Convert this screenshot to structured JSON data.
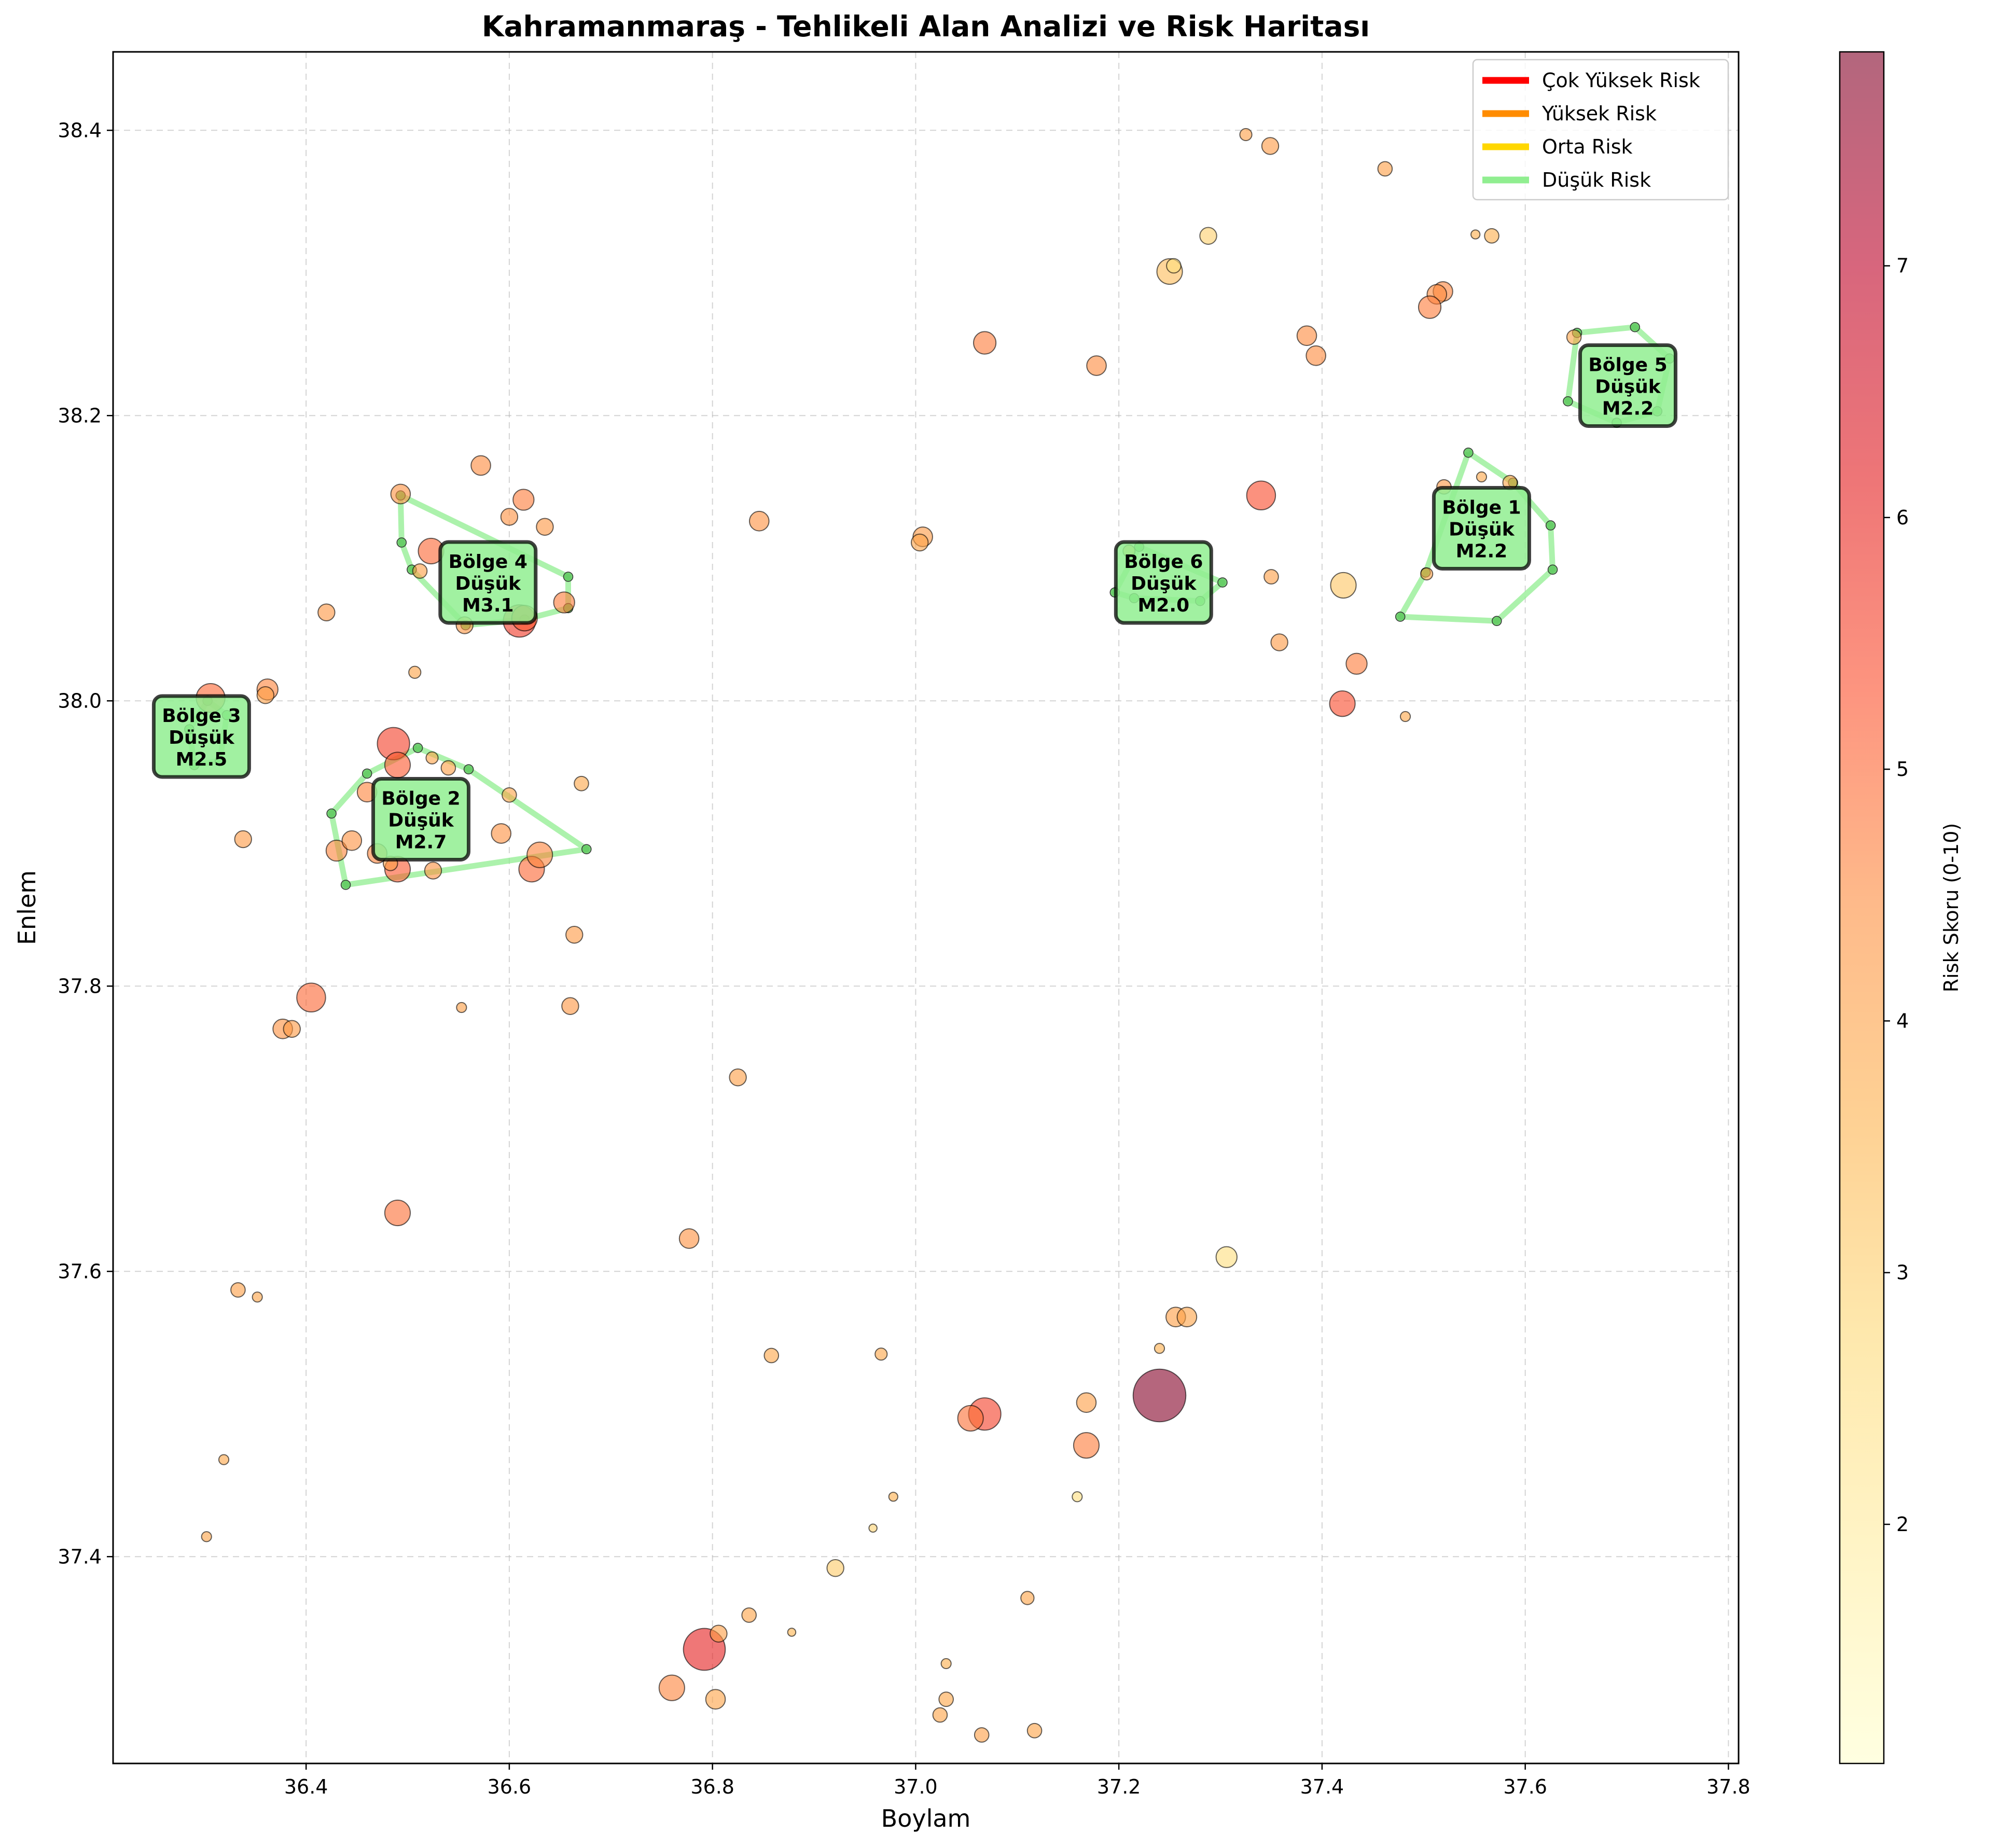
{
  "chart_data": {
    "type": "scatter",
    "title": "Kahramanmaraş - Tehlikeli Alan Analizi ve Risk Haritası",
    "xlabel": "Boylam",
    "ylabel": "Enlem",
    "xlim": [
      36.21,
      37.81
    ],
    "ylim": [
      37.255,
      38.455
    ],
    "xticks": [
      "36.4",
      "36.6",
      "36.8",
      "37.0",
      "37.2",
      "37.4",
      "37.6",
      "37.8"
    ],
    "yticks": [
      "37.4",
      "37.6",
      "37.8",
      "38.0",
      "38.2",
      "38.4"
    ],
    "grid": true,
    "legend": {
      "position": "top-right",
      "entries": [
        {
          "label": "Çok Yüksek Risk",
          "color": "#ff0000"
        },
        {
          "label": "Yüksek Risk",
          "color": "#ff8c00"
        },
        {
          "label": "Orta Risk",
          "color": "#ffd700"
        },
        {
          "label": "Düşük Risk",
          "color": "#90ee90"
        }
      ]
    },
    "colorbar": {
      "label": "Risk Skoru (0-10)",
      "min": 1.05,
      "max": 7.85,
      "ticks": [
        "2",
        "3",
        "4",
        "5",
        "6",
        "7"
      ],
      "colormap": [
        "#ffffcc",
        "#ffeda0",
        "#fed976",
        "#feb24c",
        "#fd8d3c",
        "#fc4e2a",
        "#e31a1c",
        "#bd0026",
        "#800026"
      ],
      "alpha": 0.6
    },
    "points": [
      {
        "x": 37.24,
        "y": 37.513,
        "m": 4.6,
        "risk": 7.8
      },
      {
        "x": 36.792,
        "y": 37.335,
        "m": 4.1,
        "risk": 6.1
      },
      {
        "x": 37.068,
        "y": 37.5,
        "m": 3.6,
        "risk": 5.6
      },
      {
        "x": 37.054,
        "y": 37.497,
        "m": 3.2,
        "risk": 4.9
      },
      {
        "x": 36.76,
        "y": 37.308,
        "m": 3.2,
        "risk": 4.6
      },
      {
        "x": 36.803,
        "y": 37.3,
        "m": 2.8,
        "risk": 4.0
      },
      {
        "x": 36.806,
        "y": 37.346,
        "m": 2.6,
        "risk": 4.1
      },
      {
        "x": 36.836,
        "y": 37.359,
        "m": 2.4,
        "risk": 4.0
      },
      {
        "x": 36.878,
        "y": 37.347,
        "m": 1.8,
        "risk": 3.6
      },
      {
        "x": 36.921,
        "y": 37.392,
        "m": 2.6,
        "risk": 3.1
      },
      {
        "x": 36.958,
        "y": 37.42,
        "m": 1.8,
        "risk": 2.9
      },
      {
        "x": 36.978,
        "y": 37.442,
        "m": 1.9,
        "risk": 3.7
      },
      {
        "x": 37.03,
        "y": 37.325,
        "m": 2.0,
        "risk": 3.7
      },
      {
        "x": 37.03,
        "y": 37.3,
        "m": 2.4,
        "risk": 3.9
      },
      {
        "x": 37.024,
        "y": 37.289,
        "m": 2.4,
        "risk": 4.0
      },
      {
        "x": 37.065,
        "y": 37.275,
        "m": 2.4,
        "risk": 4.1
      },
      {
        "x": 37.117,
        "y": 37.278,
        "m": 2.4,
        "risk": 4.0
      },
      {
        "x": 37.11,
        "y": 37.371,
        "m": 2.3,
        "risk": 4.0
      },
      {
        "x": 37.159,
        "y": 37.442,
        "m": 2.0,
        "risk": 2.6
      },
      {
        "x": 37.168,
        "y": 37.508,
        "m": 2.8,
        "risk": 4.1
      },
      {
        "x": 37.168,
        "y": 37.478,
        "m": 3.2,
        "risk": 4.7
      },
      {
        "x": 37.24,
        "y": 37.546,
        "m": 2.0,
        "risk": 3.7
      },
      {
        "x": 37.256,
        "y": 37.568,
        "m": 2.8,
        "risk": 4.1
      },
      {
        "x": 37.267,
        "y": 37.568,
        "m": 2.8,
        "risk": 4.0
      },
      {
        "x": 37.306,
        "y": 37.61,
        "m": 2.9,
        "risk": 2.6
      },
      {
        "x": 36.966,
        "y": 37.542,
        "m": 2.2,
        "risk": 3.9
      },
      {
        "x": 36.858,
        "y": 37.541,
        "m": 2.4,
        "risk": 3.9
      },
      {
        "x": 36.777,
        "y": 37.623,
        "m": 2.8,
        "risk": 4.4
      },
      {
        "x": 36.825,
        "y": 37.736,
        "m": 2.6,
        "risk": 4.1
      },
      {
        "x": 36.49,
        "y": 37.641,
        "m": 3.2,
        "risk": 4.9
      },
      {
        "x": 36.333,
        "y": 37.587,
        "m": 2.4,
        "risk": 4.1
      },
      {
        "x": 36.352,
        "y": 37.582,
        "m": 2.0,
        "risk": 4.0
      },
      {
        "x": 36.319,
        "y": 37.468,
        "m": 2.0,
        "risk": 3.9
      },
      {
        "x": 36.302,
        "y": 37.414,
        "m": 2.0,
        "risk": 4.0
      },
      {
        "x": 36.405,
        "y": 37.792,
        "m": 3.4,
        "risk": 5.0
      },
      {
        "x": 36.377,
        "y": 37.77,
        "m": 2.8,
        "risk": 4.4
      },
      {
        "x": 36.386,
        "y": 37.77,
        "m": 2.6,
        "risk": 4.2
      },
      {
        "x": 36.553,
        "y": 37.785,
        "m": 2.0,
        "risk": 4.1
      },
      {
        "x": 36.66,
        "y": 37.786,
        "m": 2.6,
        "risk": 4.3
      },
      {
        "x": 36.664,
        "y": 37.836,
        "m": 2.6,
        "risk": 4.2
      },
      {
        "x": 36.671,
        "y": 37.942,
        "m": 2.4,
        "risk": 3.9
      },
      {
        "x": 36.338,
        "y": 37.903,
        "m": 2.6,
        "risk": 4.2
      },
      {
        "x": 36.306,
        "y": 38.002,
        "m": 3.4,
        "risk": 5.0
      },
      {
        "x": 36.362,
        "y": 38.008,
        "m": 2.9,
        "risk": 4.6
      },
      {
        "x": 36.36,
        "y": 38.004,
        "m": 2.6,
        "risk": 4.1
      },
      {
        "x": 36.42,
        "y": 38.062,
        "m": 2.6,
        "risk": 4.3
      },
      {
        "x": 36.507,
        "y": 38.02,
        "m": 2.2,
        "risk": 4.0
      },
      {
        "x": 36.486,
        "y": 37.97,
        "m": 3.6,
        "risk": 5.6
      },
      {
        "x": 36.49,
        "y": 37.955,
        "m": 3.2,
        "risk": 5.2
      },
      {
        "x": 36.46,
        "y": 37.936,
        "m": 2.8,
        "risk": 4.6
      },
      {
        "x": 36.43,
        "y": 37.895,
        "m": 2.9,
        "risk": 4.6
      },
      {
        "x": 36.445,
        "y": 37.902,
        "m": 2.8,
        "risk": 4.4
      },
      {
        "x": 36.47,
        "y": 37.893,
        "m": 2.8,
        "risk": 4.6
      },
      {
        "x": 36.49,
        "y": 37.882,
        "m": 3.2,
        "risk": 5.2
      },
      {
        "x": 36.525,
        "y": 37.881,
        "m": 2.6,
        "risk": 4.4
      },
      {
        "x": 36.592,
        "y": 37.907,
        "m": 2.8,
        "risk": 4.4
      },
      {
        "x": 36.622,
        "y": 37.882,
        "m": 3.2,
        "risk": 5.0
      },
      {
        "x": 36.63,
        "y": 37.892,
        "m": 3.2,
        "risk": 4.6
      },
      {
        "x": 36.6,
        "y": 37.934,
        "m": 2.4,
        "risk": 4.0
      },
      {
        "x": 36.54,
        "y": 37.953,
        "m": 2.4,
        "risk": 4.1
      },
      {
        "x": 36.524,
        "y": 37.96,
        "m": 2.2,
        "risk": 4.0
      },
      {
        "x": 36.483,
        "y": 37.886,
        "m": 2.4,
        "risk": 4.1
      },
      {
        "x": 36.572,
        "y": 38.165,
        "m": 2.8,
        "risk": 4.5
      },
      {
        "x": 36.493,
        "y": 38.145,
        "m": 2.8,
        "risk": 4.4
      },
      {
        "x": 36.614,
        "y": 38.141,
        "m": 2.9,
        "risk": 4.7
      },
      {
        "x": 36.6,
        "y": 38.129,
        "m": 2.6,
        "risk": 4.4
      },
      {
        "x": 36.635,
        "y": 38.122,
        "m": 2.6,
        "risk": 4.3
      },
      {
        "x": 36.523,
        "y": 38.105,
        "m": 3.2,
        "risk": 5.0
      },
      {
        "x": 36.512,
        "y": 38.091,
        "m": 2.4,
        "risk": 4.1
      },
      {
        "x": 36.61,
        "y": 38.056,
        "m": 3.6,
        "risk": 5.7
      },
      {
        "x": 36.615,
        "y": 38.058,
        "m": 3.2,
        "risk": 5.2
      },
      {
        "x": 36.654,
        "y": 38.069,
        "m": 2.9,
        "risk": 4.7
      },
      {
        "x": 36.556,
        "y": 38.053,
        "m": 2.6,
        "risk": 4.3
      },
      {
        "x": 36.846,
        "y": 38.126,
        "m": 2.8,
        "risk": 4.4
      },
      {
        "x": 37.007,
        "y": 38.115,
        "m": 2.8,
        "risk": 4.2
      },
      {
        "x": 37.004,
        "y": 38.111,
        "m": 2.6,
        "risk": 4.0
      },
      {
        "x": 37.068,
        "y": 38.251,
        "m": 3.0,
        "risk": 4.7
      },
      {
        "x": 37.178,
        "y": 38.235,
        "m": 2.8,
        "risk": 4.5
      },
      {
        "x": 37.25,
        "y": 38.301,
        "m": 3.2,
        "risk": 3.4
      },
      {
        "x": 37.254,
        "y": 38.305,
        "m": 2.4,
        "risk": 2.6
      },
      {
        "x": 37.288,
        "y": 38.326,
        "m": 2.6,
        "risk": 3.0
      },
      {
        "x": 37.325,
        "y": 38.397,
        "m": 2.2,
        "risk": 4.1
      },
      {
        "x": 37.349,
        "y": 38.389,
        "m": 2.6,
        "risk": 4.2
      },
      {
        "x": 37.462,
        "y": 38.373,
        "m": 2.4,
        "risk": 4.1
      },
      {
        "x": 37.551,
        "y": 38.327,
        "m": 1.9,
        "risk": 3.7
      },
      {
        "x": 37.567,
        "y": 38.326,
        "m": 2.4,
        "risk": 3.7
      },
      {
        "x": 37.519,
        "y": 38.287,
        "m": 2.8,
        "risk": 4.6
      },
      {
        "x": 37.513,
        "y": 38.285,
        "m": 2.8,
        "risk": 4.5
      },
      {
        "x": 37.506,
        "y": 38.276,
        "m": 3.0,
        "risk": 4.7
      },
      {
        "x": 37.385,
        "y": 38.256,
        "m": 2.8,
        "risk": 4.5
      },
      {
        "x": 37.394,
        "y": 38.242,
        "m": 2.8,
        "risk": 4.5
      },
      {
        "x": 37.34,
        "y": 38.144,
        "m": 3.4,
        "risk": 5.4
      },
      {
        "x": 37.35,
        "y": 38.087,
        "m": 2.4,
        "risk": 4.1
      },
      {
        "x": 37.421,
        "y": 38.081,
        "m": 3.2,
        "risk": 3.2
      },
      {
        "x": 37.358,
        "y": 38.041,
        "m": 2.6,
        "risk": 4.2
      },
      {
        "x": 37.434,
        "y": 38.026,
        "m": 2.9,
        "risk": 4.7
      },
      {
        "x": 37.42,
        "y": 37.998,
        "m": 3.2,
        "risk": 5.4
      },
      {
        "x": 37.482,
        "y": 37.989,
        "m": 2.0,
        "risk": 3.9
      },
      {
        "x": 37.503,
        "y": 38.089,
        "m": 2.2,
        "risk": 4.0
      },
      {
        "x": 37.52,
        "y": 38.15,
        "m": 2.4,
        "risk": 4.3
      },
      {
        "x": 37.557,
        "y": 38.157,
        "m": 2.0,
        "risk": 3.9
      },
      {
        "x": 37.585,
        "y": 38.153,
        "m": 2.4,
        "risk": 4.0
      },
      {
        "x": 37.648,
        "y": 38.255,
        "m": 2.4,
        "risk": 4.0
      },
      {
        "x": 37.21,
        "y": 38.105,
        "m": 2.2,
        "risk": 4.0
      }
    ],
    "regions": [
      {
        "name": "Bölge 1",
        "level": "Düşük",
        "mag": "M2.2",
        "label_x": 37.557,
        "label_y": 38.121,
        "hull": [
          [
            37.544,
            38.174
          ],
          [
            37.588,
            38.153
          ],
          [
            37.625,
            38.123
          ],
          [
            37.627,
            38.092
          ],
          [
            37.572,
            38.056
          ],
          [
            37.477,
            38.059
          ],
          [
            37.502,
            38.09
          ]
        ]
      },
      {
        "name": "Bölge 2",
        "level": "Düşük",
        "mag": "M2.7",
        "label_x": 36.513,
        "label_y": 37.917,
        "hull": [
          [
            36.51,
            37.967
          ],
          [
            36.56,
            37.952
          ],
          [
            36.676,
            37.896
          ],
          [
            36.439,
            37.871
          ],
          [
            36.425,
            37.921
          ],
          [
            36.46,
            37.949
          ]
        ]
      },
      {
        "name": "Bölge 3",
        "level": "Düşük",
        "mag": "M2.5",
        "label_x": 36.297,
        "label_y": 37.975,
        "hull": [
          [
            36.303,
            38.0
          ],
          [
            36.322,
            37.99
          ],
          [
            36.315,
            37.958
          ],
          [
            36.29,
            37.955
          ],
          [
            36.285,
            37.98
          ]
        ]
      },
      {
        "name": "Bölge 4",
        "level": "Düşük",
        "mag": "M3.1",
        "label_x": 36.579,
        "label_y": 38.083,
        "hull": [
          [
            36.493,
            38.144
          ],
          [
            36.658,
            38.087
          ],
          [
            36.658,
            38.065
          ],
          [
            36.615,
            38.057
          ],
          [
            36.557,
            38.053
          ],
          [
            36.504,
            38.092
          ],
          [
            36.494,
            38.111
          ]
        ]
      },
      {
        "name": "Bölge 5",
        "level": "Düşük",
        "mag": "M2.2",
        "label_x": 37.701,
        "label_y": 38.221,
        "hull": [
          [
            37.651,
            38.258
          ],
          [
            37.708,
            38.262
          ],
          [
            37.742,
            38.24
          ],
          [
            37.73,
            38.203
          ],
          [
            37.69,
            38.195
          ],
          [
            37.642,
            38.21
          ]
        ]
      },
      {
        "name": "Bölge 6",
        "level": "Düşük",
        "mag": "M2.0",
        "label_x": 37.244,
        "label_y": 38.083,
        "hull": [
          [
            37.22,
            38.108
          ],
          [
            37.302,
            38.083
          ],
          [
            37.28,
            38.07
          ],
          [
            37.215,
            38.072
          ],
          [
            37.196,
            38.076
          ]
        ]
      }
    ]
  }
}
